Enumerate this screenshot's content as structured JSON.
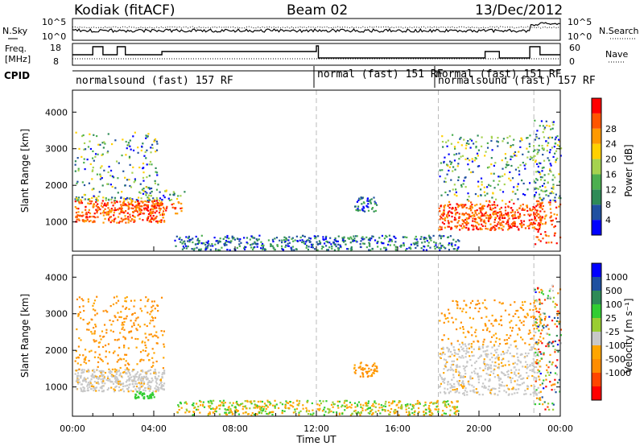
{
  "header": {
    "station": "Kodiak (fitACF)",
    "beam": "Beam 02",
    "date": "13/Dec/2012"
  },
  "noise_panel": {
    "left_label": "N.Sky",
    "right_label": "N.Search",
    "left_ticks": [
      "10^5",
      "10^0"
    ],
    "right_ticks": [
      "10^5",
      "10^0"
    ]
  },
  "freq_panel": {
    "left_label_1": "Freq.",
    "left_label_2": "[MHz]",
    "right_label": "Nave",
    "left_ticks": [
      "18",
      "8"
    ],
    "right_ticks": [
      "60",
      "0"
    ]
  },
  "cpid": {
    "label": "CPID",
    "segments": [
      {
        "text": "normalsound (fast) 157 RF"
      },
      {
        "text": "normal (fast) 151 RF"
      },
      {
        "text": "normal (fast) 151 RF"
      },
      {
        "text": "normalsound (fast) 157 RF"
      }
    ]
  },
  "colors": {
    "power": [
      "#0000ff",
      "#2050a0",
      "#2e8b57",
      "#4caf50",
      "#a5d24f",
      "#ffd000",
      "#ff9900",
      "#ff5500",
      "#ff0000"
    ],
    "velocity": [
      "#ff0000",
      "#ff4500",
      "#ff8c00",
      "#ffa500",
      "#c8c8c8",
      "#9acd32",
      "#32cd32",
      "#2e8b57",
      "#1e50a0",
      "#0000ff"
    ],
    "bg": "#ffffff"
  },
  "chart_data": [
    {
      "type": "heatmap",
      "title": "",
      "xlabel": "",
      "ylabel": "Slant Range [km]",
      "x_ticks": [
        "00:00",
        "04:00",
        "08:00",
        "12:00",
        "16:00",
        "20:00",
        "00:00"
      ],
      "y_ticks": [
        "1000",
        "2000",
        "3000",
        "4000"
      ],
      "ylim": [
        200,
        4600
      ],
      "xlim_hours": [
        0,
        24
      ],
      "colorbar": {
        "label": "Power [dB]",
        "ticks": [
          "4",
          "8",
          "12",
          "16",
          "20",
          "24",
          "28"
        ]
      }
    },
    {
      "type": "heatmap",
      "title": "",
      "xlabel": "Time UT",
      "ylabel": "Slant Range [km]",
      "x_ticks": [
        "00:00",
        "04:00",
        "08:00",
        "12:00",
        "16:00",
        "20:00",
        "00:00"
      ],
      "y_ticks": [
        "1000",
        "2000",
        "3000",
        "4000"
      ],
      "ylim": [
        200,
        4600
      ],
      "xlim_hours": [
        0,
        24
      ],
      "colorbar": {
        "label": "Velocity [m s⁻¹]",
        "ticks": [
          "1000",
          "500",
          "100",
          "25",
          "-25",
          "-100",
          "-500",
          "-1000"
        ]
      }
    }
  ]
}
